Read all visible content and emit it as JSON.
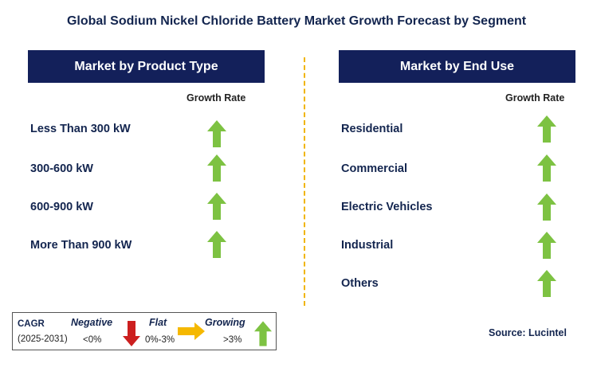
{
  "title": "Global Sodium Nickel Chloride Battery Market Growth Forecast by Segment",
  "left_panel": {
    "header": "Market by Product Type",
    "growth_label": "Growth Rate",
    "items": [
      "Less Than 300 kW",
      "300-600 kW",
      "600-900 kW",
      "More Than 900 kW"
    ]
  },
  "right_panel": {
    "header": "Market by End Use",
    "growth_label": "Growth Rate",
    "items": [
      "Residential",
      "Commercial",
      "Electric Vehicles",
      "Industrial",
      "Others"
    ]
  },
  "legend": {
    "cagr": "CAGR",
    "period": "(2025-2031)",
    "negative_label": "Negative",
    "negative_value": "<0%",
    "flat_label": "Flat",
    "flat_value": "0%-3%",
    "growing_label": "Growing",
    "growing_value": ">3%"
  },
  "source": "Source: Lucintel",
  "colors": {
    "header_bg": "#13205a",
    "up_arrow": "#7dc242",
    "down_arrow": "#cc1f1f",
    "flat_arrow": "#f5b800",
    "divider": "#f0b400"
  },
  "icons": {
    "growth": "up-arrow-icon",
    "negative": "down-arrow-icon",
    "flat": "right-arrow-icon"
  }
}
